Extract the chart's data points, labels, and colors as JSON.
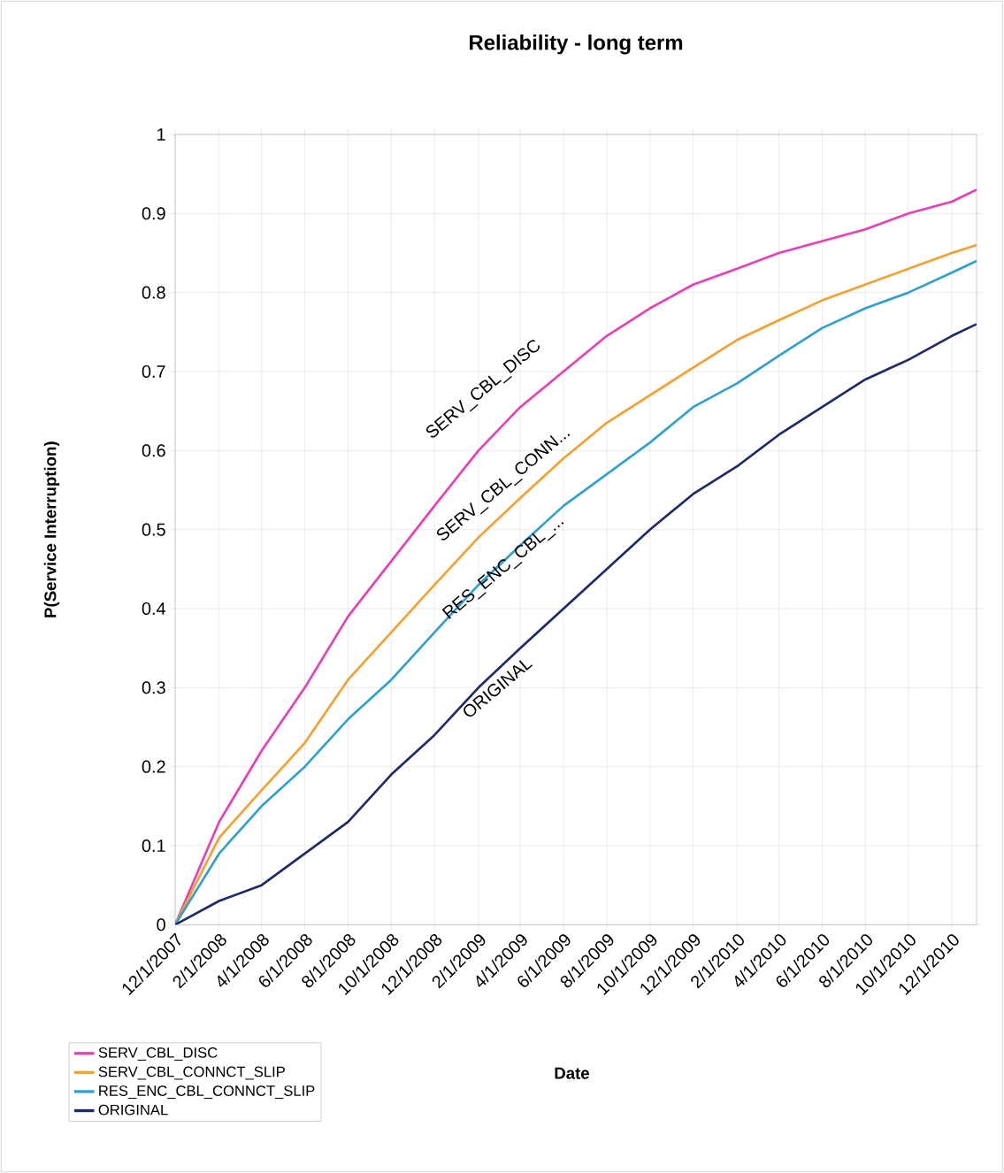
{
  "chart_data": {
    "type": "line",
    "title": "Reliability - long term",
    "xlabel": "Date",
    "ylabel": "P(Service Interruption)",
    "x": [
      "2007-12-01",
      "2008-02-01",
      "2008-04-01",
      "2008-06-01",
      "2008-08-01",
      "2008-10-01",
      "2008-12-01",
      "2009-02-01",
      "2009-04-01",
      "2009-06-01",
      "2009-08-01",
      "2009-10-01",
      "2009-12-01",
      "2010-02-01",
      "2010-04-01",
      "2010-06-01",
      "2010-08-01",
      "2010-10-01",
      "2010-12-01",
      "2011-01-05"
    ],
    "series": [
      {
        "name": "SERV_CBL_DISC",
        "color": "#e83fb5",
        "values": [
          0,
          0.13,
          0.22,
          0.3,
          0.39,
          0.46,
          0.53,
          0.6,
          0.655,
          0.7,
          0.745,
          0.78,
          0.81,
          0.83,
          0.85,
          0.865,
          0.88,
          0.9,
          0.915,
          0.93
        ]
      },
      {
        "name": "SERV_CBL_CONNCT_SLIP",
        "color": "#f7a030",
        "values": [
          0,
          0.11,
          0.17,
          0.23,
          0.31,
          0.37,
          0.43,
          0.49,
          0.54,
          0.59,
          0.635,
          0.67,
          0.705,
          0.74,
          0.765,
          0.79,
          0.81,
          0.83,
          0.85,
          0.86
        ]
      },
      {
        "name": "RES_ENC_CBL_CONNCT_SLIP",
        "color": "#2fa0d0",
        "values": [
          0,
          0.09,
          0.15,
          0.2,
          0.26,
          0.31,
          0.37,
          0.43,
          0.48,
          0.53,
          0.57,
          0.61,
          0.655,
          0.685,
          0.72,
          0.755,
          0.78,
          0.8,
          0.825,
          0.84
        ]
      },
      {
        "name": "ORIGINAL",
        "color": "#1f2a6b",
        "values": [
          0,
          0.03,
          0.05,
          0.09,
          0.13,
          0.19,
          0.24,
          0.3,
          0.35,
          0.4,
          0.45,
          0.5,
          0.545,
          0.58,
          0.62,
          0.655,
          0.69,
          0.715,
          0.745,
          0.76
        ]
      }
    ],
    "annotations": [
      "SERV_CBL_DISC",
      "SERV_CBL_CONN...",
      "RES_ENC_CBL_...",
      "ORIGINAL"
    ],
    "xlim": [
      "2007-12-01",
      "2011-01-05"
    ],
    "ylim": [
      0,
      1
    ],
    "xticks": [
      {
        "value": "2007-12-01",
        "label": "12/1/2007"
      },
      {
        "value": "2008-02-01",
        "label": "2/1/2008"
      },
      {
        "value": "2008-04-01",
        "label": "4/1/2008"
      },
      {
        "value": "2008-06-01",
        "label": "6/1/2008"
      },
      {
        "value": "2008-08-01",
        "label": "8/1/2008"
      },
      {
        "value": "2008-10-01",
        "label": "10/1/2008"
      },
      {
        "value": "2008-12-01",
        "label": "12/1/2008"
      },
      {
        "value": "2009-02-01",
        "label": "2/1/2009"
      },
      {
        "value": "2009-04-01",
        "label": "4/1/2009"
      },
      {
        "value": "2009-06-01",
        "label": "6/1/2009"
      },
      {
        "value": "2009-08-01",
        "label": "8/1/2009"
      },
      {
        "value": "2009-10-01",
        "label": "10/1/2009"
      },
      {
        "value": "2009-12-01",
        "label": "12/1/2009"
      },
      {
        "value": "2010-02-01",
        "label": "2/1/2010"
      },
      {
        "value": "2010-04-01",
        "label": "4/1/2010"
      },
      {
        "value": "2010-06-01",
        "label": "6/1/2010"
      },
      {
        "value": "2010-08-01",
        "label": "8/1/2010"
      },
      {
        "value": "2010-10-01",
        "label": "10/1/2010"
      },
      {
        "value": "2010-12-01",
        "label": "12/1/2010"
      }
    ],
    "yticks": [
      0,
      0.1,
      0.2,
      0.3,
      0.4,
      0.5,
      0.6,
      0.7,
      0.8,
      0.9,
      1
    ],
    "grid": true,
    "legend": "bottom left"
  }
}
